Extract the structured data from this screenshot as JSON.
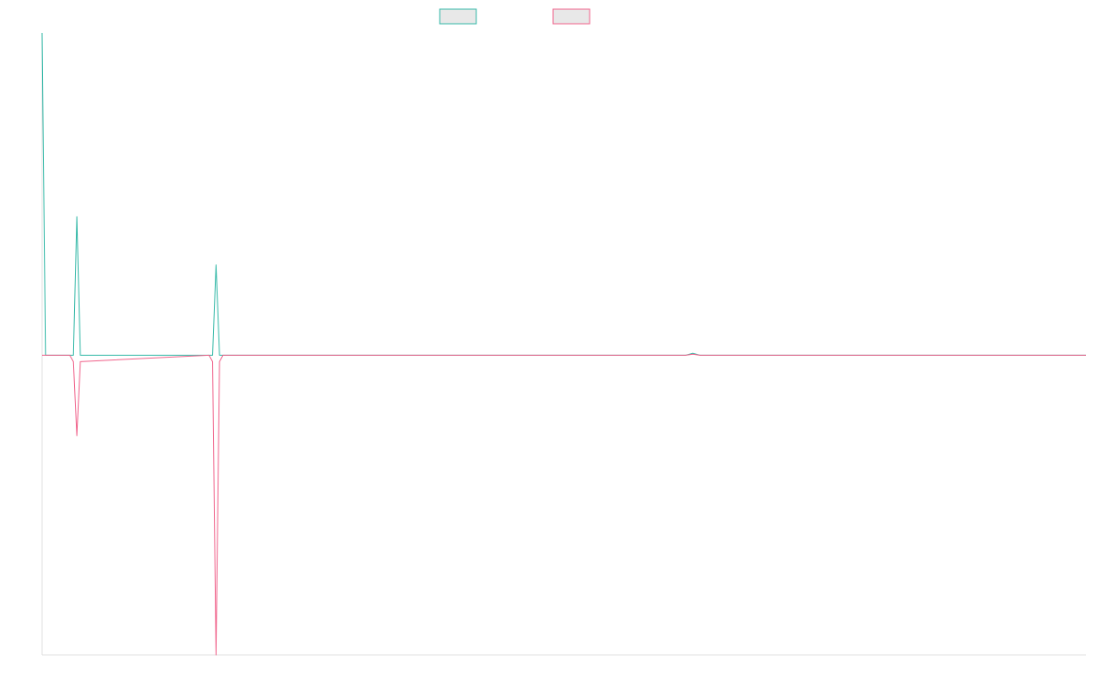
{
  "chart_data": {
    "type": "line",
    "x": [
      0,
      0.5,
      4,
      4.5,
      5,
      5.5,
      24,
      24.5,
      25,
      25.5,
      26,
      92.5,
      93.5,
      94.5,
      150
    ],
    "series": [
      {
        "color": "#36b9a8",
        "values": [
          1,
          0,
          0,
          0,
          0.43,
          0,
          0,
          0,
          0.28,
          0,
          0,
          0,
          0.006,
          0,
          0
        ]
      },
      {
        "color": "#f0648c",
        "values": [
          0,
          0,
          0,
          -0.02,
          -0.25,
          -0.02,
          0,
          -0.02,
          -0.93,
          -0.02,
          0,
          0,
          0.003,
          0,
          0
        ]
      }
    ],
    "xlim": [
      0,
      150
    ],
    "ylim": [
      -0.93,
      1
    ],
    "legend": "top"
  }
}
